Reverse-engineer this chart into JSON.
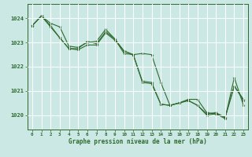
{
  "background_color": "#cce8e4",
  "grid_color": "#ffffff",
  "line_color": "#2d6a2d",
  "marker_color": "#2d6a2d",
  "text_color": "#2d6a2d",
  "xlabel": "Graphe pression niveau de la mer (hPa)",
  "xlim": [
    -0.5,
    23.5
  ],
  "ylim": [
    1019.4,
    1024.6
  ],
  "yticks": [
    1020,
    1021,
    1022,
    1023,
    1024
  ],
  "xticks": [
    0,
    1,
    2,
    3,
    4,
    5,
    6,
    7,
    8,
    9,
    10,
    11,
    12,
    13,
    14,
    15,
    16,
    17,
    18,
    19,
    20,
    21,
    22,
    23
  ],
  "xtick_labels": [
    "0",
    "1",
    "2",
    "3",
    "4",
    "5",
    "6",
    "7",
    "8",
    "9",
    "10",
    "11",
    "12",
    "13",
    "14",
    "15",
    "16",
    "17",
    "18",
    "19",
    "20",
    "21",
    "22",
    "23"
  ],
  "series": [
    [
      1023.7,
      1024.1,
      1023.8,
      1023.65,
      1022.85,
      1022.8,
      1023.0,
      1023.05,
      1023.55,
      1023.15,
      1022.55,
      1022.5,
      1022.55,
      1022.5,
      1021.35,
      1020.4,
      1020.5,
      1020.65,
      1020.65,
      1020.1,
      1020.05,
      1019.85,
      1021.55,
      1020.4
    ],
    [
      1023.7,
      1024.1,
      1023.65,
      1023.2,
      1022.75,
      1022.7,
      1022.9,
      1022.9,
      1023.4,
      1023.1,
      1022.65,
      1022.5,
      1021.35,
      1021.3,
      1020.45,
      1020.4,
      1020.5,
      1020.6,
      1020.4,
      1020.0,
      1020.05,
      1019.9,
      1021.2,
      1020.6
    ],
    [
      1023.7,
      1024.1,
      1023.7,
      1023.2,
      1022.75,
      1022.75,
      1023.05,
      1022.95,
      1023.45,
      1023.15,
      1022.65,
      1022.5,
      1021.4,
      1021.35,
      1020.45,
      1020.4,
      1020.5,
      1020.6,
      1020.4,
      1020.05,
      1020.1,
      1019.9,
      1021.2,
      1020.65
    ]
  ]
}
